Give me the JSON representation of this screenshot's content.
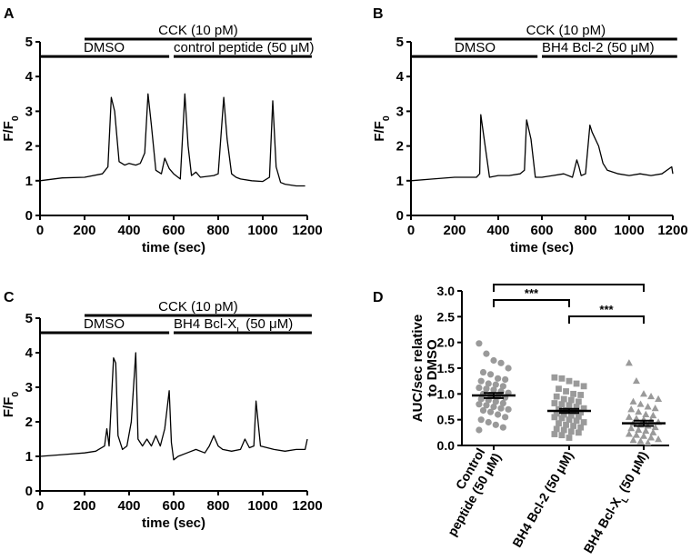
{
  "chart_data": [
    {
      "panel": "A",
      "type": "line",
      "ylabel": "F/F0",
      "xlabel": "time (sec)",
      "xlim": [
        0,
        1200
      ],
      "ylim": [
        0,
        5
      ],
      "xticks": [
        0,
        200,
        400,
        600,
        800,
        1000,
        1200
      ],
      "yticks": [
        0,
        1,
        2,
        3,
        4,
        5
      ],
      "annotations": [
        {
          "text": "CCK (10 pM)",
          "x_start": 200,
          "x_end": 1220,
          "y": 5.0
        },
        {
          "text": "DMSO",
          "x_start": 0,
          "x_end": 580,
          "y": 4.5
        },
        {
          "text": "control peptide (50 μM)",
          "x_start": 600,
          "x_end": 1220,
          "y": 4.5
        }
      ],
      "x": [
        0,
        100,
        200,
        280,
        305,
        320,
        335,
        355,
        380,
        400,
        430,
        450,
        470,
        485,
        500,
        520,
        545,
        560,
        580,
        600,
        630,
        650,
        665,
        680,
        700,
        720,
        780,
        800,
        825,
        840,
        860,
        880,
        900,
        950,
        1000,
        1030,
        1045,
        1060,
        1080,
        1100,
        1150,
        1190
      ],
      "y": [
        1.0,
        1.08,
        1.1,
        1.2,
        1.4,
        3.4,
        3.0,
        1.55,
        1.45,
        1.5,
        1.45,
        1.5,
        1.8,
        3.5,
        2.6,
        1.3,
        1.2,
        1.65,
        1.35,
        1.2,
        1.05,
        3.5,
        2.0,
        1.15,
        1.25,
        1.1,
        1.15,
        1.2,
        3.4,
        2.2,
        1.2,
        1.1,
        1.05,
        1.0,
        0.98,
        1.1,
        3.3,
        1.4,
        0.95,
        0.9,
        0.85,
        0.85
      ]
    },
    {
      "panel": "B",
      "type": "line",
      "ylabel": "F/F0",
      "xlabel": "time (sec)",
      "xlim": [
        0,
        1200
      ],
      "ylim": [
        0,
        5
      ],
      "xticks": [
        0,
        200,
        400,
        600,
        800,
        1000,
        1200
      ],
      "yticks": [
        0,
        1,
        2,
        3,
        4,
        5
      ],
      "annotations": [
        {
          "text": "CCK (10 pM)",
          "x_start": 200,
          "x_end": 1220,
          "y": 5.0
        },
        {
          "text": "DMSO",
          "x_start": 0,
          "x_end": 580,
          "y": 4.5
        },
        {
          "text": "BH4 Bcl-2 (50 μM)",
          "x_start": 600,
          "x_end": 1220,
          "y": 4.5
        }
      ],
      "x": [
        0,
        100,
        200,
        300,
        315,
        320,
        340,
        360,
        400,
        450,
        500,
        520,
        530,
        550,
        570,
        600,
        650,
        700,
        740,
        760,
        770,
        780,
        800,
        820,
        830,
        860,
        880,
        900,
        950,
        1000,
        1050,
        1100,
        1150,
        1195,
        1200
      ],
      "y": [
        1.0,
        1.05,
        1.1,
        1.1,
        1.2,
        2.9,
        2.0,
        1.1,
        1.15,
        1.15,
        1.2,
        1.3,
        2.75,
        2.2,
        1.1,
        1.1,
        1.15,
        1.2,
        1.1,
        1.6,
        1.4,
        1.15,
        1.2,
        2.6,
        2.4,
        2.0,
        1.5,
        1.3,
        1.2,
        1.15,
        1.2,
        1.15,
        1.2,
        1.4,
        1.2
      ]
    },
    {
      "panel": "C",
      "type": "line",
      "ylabel": "F/F0",
      "xlabel": "time (sec)",
      "xlim": [
        0,
        1200
      ],
      "ylim": [
        0,
        5
      ],
      "xticks": [
        0,
        200,
        400,
        600,
        800,
        1000,
        1200
      ],
      "yticks": [
        0,
        1,
        2,
        3,
        4,
        5
      ],
      "annotations": [
        {
          "text": "CCK (10 pM)",
          "x_start": 200,
          "x_end": 1220,
          "y": 5.0
        },
        {
          "text": "DMSO",
          "x_start": 0,
          "x_end": 580,
          "y": 4.5
        },
        {
          "text": "BH4 Bcl-XL (50 μM)",
          "x_start": 600,
          "x_end": 1220,
          "y": 4.5
        }
      ],
      "x": [
        0,
        100,
        200,
        250,
        290,
        300,
        310,
        330,
        340,
        350,
        370,
        390,
        410,
        430,
        440,
        460,
        480,
        500,
        520,
        540,
        560,
        580,
        590,
        600,
        620,
        660,
        700,
        740,
        760,
        780,
        800,
        820,
        860,
        900,
        920,
        940,
        960,
        970,
        990,
        1050,
        1100,
        1150,
        1190,
        1200
      ],
      "y": [
        1.0,
        1.05,
        1.1,
        1.15,
        1.3,
        1.8,
        1.3,
        3.85,
        3.7,
        1.6,
        1.2,
        1.3,
        2.0,
        4.0,
        1.5,
        1.3,
        1.5,
        1.3,
        1.6,
        1.3,
        1.8,
        2.9,
        1.4,
        0.9,
        1.0,
        1.1,
        1.2,
        1.1,
        1.3,
        1.6,
        1.3,
        1.2,
        1.15,
        1.2,
        1.5,
        1.25,
        1.3,
        2.6,
        1.3,
        1.2,
        1.15,
        1.2,
        1.2,
        1.5
      ]
    },
    {
      "panel": "D",
      "type": "scatter",
      "ylabel": "AUC/sec relative to DMSO",
      "ylim": [
        0,
        3.0
      ],
      "yticks": [
        0.0,
        0.5,
        1.0,
        1.5,
        2.0,
        2.5,
        3.0
      ],
      "categories": [
        "Control peptide (50 μM)",
        "BH4 Bcl-2 (50 μM)",
        "BH4 Bcl-XL (50 μM)"
      ],
      "markers": [
        "circle",
        "square",
        "triangle"
      ],
      "means": [
        0.97,
        0.67,
        0.43
      ],
      "sem": [
        0.05,
        0.04,
        0.05
      ],
      "significance": [
        {
          "from": 0,
          "to": 1,
          "label": "***"
        },
        {
          "from": 1,
          "to": 2,
          "label": "***"
        },
        {
          "from": 0,
          "to": 2,
          "label": ""
        }
      ],
      "series": [
        {
          "values": [
            1.98,
            1.78,
            1.65,
            1.6,
            1.5,
            1.42,
            1.38,
            1.3,
            1.28,
            1.25,
            1.2,
            1.18,
            1.15,
            1.12,
            1.1,
            1.08,
            1.05,
            1.02,
            1.0,
            0.98,
            0.95,
            0.93,
            0.9,
            0.88,
            0.85,
            0.82,
            0.8,
            0.78,
            0.75,
            0.72,
            0.7,
            0.68,
            0.65,
            0.6,
            0.55,
            0.5,
            0.45,
            0.4,
            0.35,
            0.3
          ]
        },
        {
          "values": [
            1.32,
            1.3,
            1.25,
            1.2,
            1.15,
            1.1,
            1.05,
            1.0,
            0.98,
            0.95,
            0.9,
            0.88,
            0.85,
            0.82,
            0.8,
            0.78,
            0.75,
            0.72,
            0.7,
            0.68,
            0.66,
            0.64,
            0.62,
            0.6,
            0.58,
            0.56,
            0.55,
            0.53,
            0.5,
            0.48,
            0.45,
            0.43,
            0.4,
            0.38,
            0.35,
            0.32,
            0.3,
            0.27,
            0.25,
            0.22,
            0.2,
            0.15
          ]
        },
        {
          "values": [
            1.6,
            1.25,
            1.0,
            0.95,
            0.9,
            0.85,
            0.8,
            0.75,
            0.72,
            0.7,
            0.65,
            0.6,
            0.58,
            0.55,
            0.52,
            0.5,
            0.48,
            0.45,
            0.43,
            0.4,
            0.38,
            0.35,
            0.33,
            0.3,
            0.28,
            0.25,
            0.22,
            0.2,
            0.18,
            0.15,
            0.12,
            0.1,
            0.08,
            0.05
          ]
        }
      ]
    }
  ],
  "panel_letters": [
    "A",
    "B",
    "C",
    "D"
  ],
  "colors": {
    "trace": "#000000",
    "points": "#9a9a9a",
    "axis": "#000000"
  }
}
